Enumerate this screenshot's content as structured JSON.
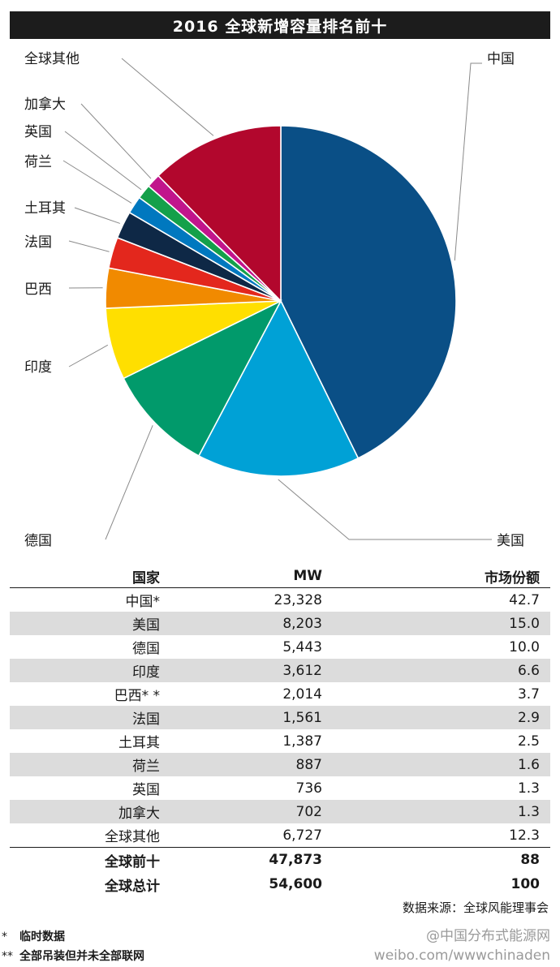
{
  "chart_data": {
    "type": "pie",
    "title": "2016 全球新增容量排名前十",
    "slices": [
      {
        "label": "中国",
        "value": 23328,
        "color": "#0a4f86"
      },
      {
        "label": "美国",
        "value": 8203,
        "color": "#00a1d6"
      },
      {
        "label": "德国",
        "value": 5443,
        "color": "#019a6b"
      },
      {
        "label": "印度",
        "value": 3612,
        "color": "#ffdf00"
      },
      {
        "label": "巴西",
        "value": 2014,
        "color": "#f18a00"
      },
      {
        "label": "法国",
        "value": 1561,
        "color": "#e3271d"
      },
      {
        "label": "土耳其",
        "value": 1387,
        "color": "#0e2846"
      },
      {
        "label": "荷兰",
        "value": 887,
        "color": "#0078bf"
      },
      {
        "label": "英国",
        "value": 736,
        "color": "#14a04a"
      },
      {
        "label": "加拿大",
        "value": 702,
        "color": "#c1158c"
      },
      {
        "label": "全球其他",
        "value": 6727,
        "color": "#b2072d"
      }
    ]
  },
  "table": {
    "headers": {
      "country": "国家",
      "mw": "MW",
      "share": "市场份额"
    },
    "rows": [
      {
        "country": "中国*",
        "mw": "23,328",
        "share": "42.7"
      },
      {
        "country": "美国",
        "mw": "8,203",
        "share": "15.0"
      },
      {
        "country": "德国",
        "mw": "5,443",
        "share": "10.0"
      },
      {
        "country": "印度",
        "mw": "3,612",
        "share": "6.6"
      },
      {
        "country": "巴西* *",
        "mw": "2,014",
        "share": "3.7"
      },
      {
        "country": "法国",
        "mw": "1,561",
        "share": "2.9"
      },
      {
        "country": "土耳其",
        "mw": "1,387",
        "share": "2.5"
      },
      {
        "country": "荷兰",
        "mw": "887",
        "share": "1.6"
      },
      {
        "country": "英国",
        "mw": "736",
        "share": "1.3"
      },
      {
        "country": "加拿大",
        "mw": "702",
        "share": "1.3"
      },
      {
        "country": "全球其他",
        "mw": "6,727",
        "share": "12.3"
      }
    ],
    "totals": [
      {
        "country": "全球前十",
        "mw": "47,873",
        "share": "88"
      },
      {
        "country": "全球总计",
        "mw": "54,600",
        "share": "100"
      }
    ]
  },
  "source": "数据来源：全球风能理事会",
  "footnotes": [
    {
      "mark": "*",
      "text": "临时数据"
    },
    {
      "mark": "**",
      "text": "全部吊装但并未全部联网"
    }
  ],
  "watermark": {
    "line1": "@中国分布式能源网",
    "line2": "weibo.com/wwwchinaden"
  }
}
